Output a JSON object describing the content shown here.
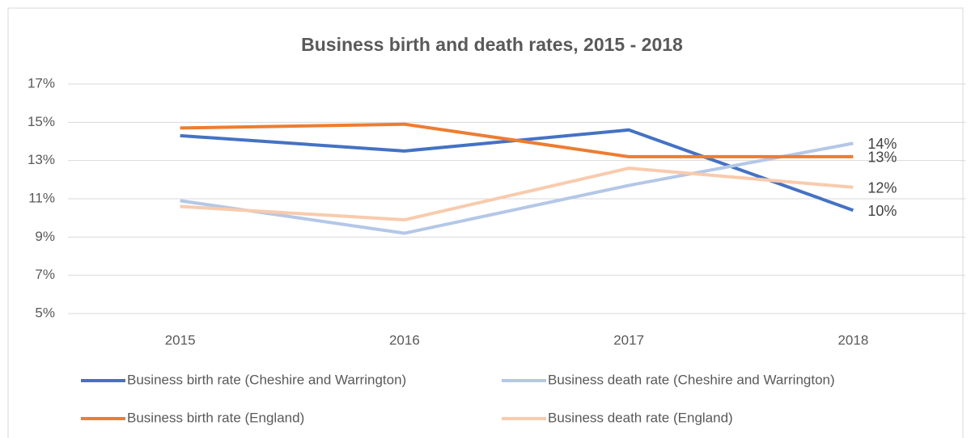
{
  "chart_data": {
    "type": "line",
    "title": "Business birth and death rates, 2015 - 2018",
    "categories": [
      "2015",
      "2016",
      "2017",
      "2018"
    ],
    "series": [
      {
        "name": "Business birth rate (Cheshire and Warrington)",
        "color": "#4472c4",
        "values": [
          14.3,
          13.5,
          14.6,
          10.4
        ],
        "value_labels": [
          null,
          null,
          null,
          "10%"
        ]
      },
      {
        "name": "Business death rate (Cheshire and Warrington)",
        "color": "#b4c7e7",
        "values": [
          10.9,
          9.2,
          11.7,
          13.9
        ],
        "value_labels": [
          null,
          null,
          null,
          "14%"
        ]
      },
      {
        "name": "Business birth rate (England)",
        "color": "#ed7d31",
        "values": [
          14.7,
          14.9,
          13.2,
          13.2
        ],
        "value_labels": [
          null,
          null,
          null,
          "13%"
        ]
      },
      {
        "name": "Business death rate (England)",
        "color": "#f8cbad",
        "values": [
          10.6,
          9.9,
          12.6,
          11.6
        ],
        "value_labels": [
          null,
          null,
          null,
          "12%"
        ]
      }
    ],
    "ylim": [
      5,
      17
    ],
    "yticks": [
      {
        "value": 5,
        "label": "5%"
      },
      {
        "value": 7,
        "label": "7%"
      },
      {
        "value": 9,
        "label": "9%"
      },
      {
        "value": 11,
        "label": "11%"
      },
      {
        "value": 13,
        "label": "13%"
      },
      {
        "value": 15,
        "label": "15%"
      },
      {
        "value": 17,
        "label": "17%"
      }
    ],
    "grid": true
  }
}
